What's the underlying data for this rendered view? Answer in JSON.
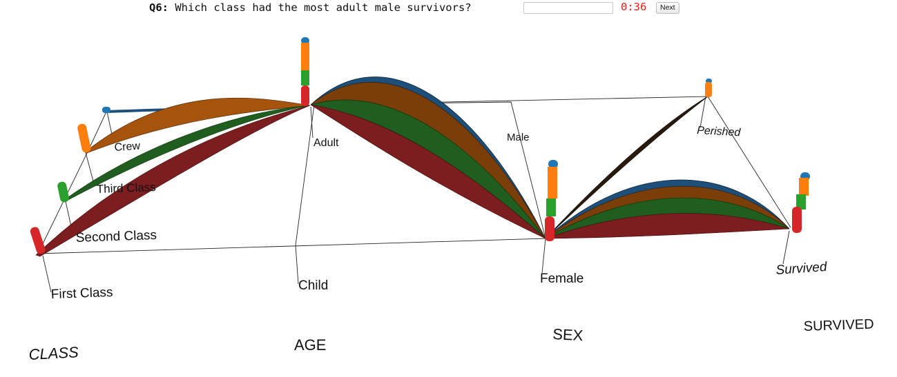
{
  "question": {
    "number": "Q6:",
    "text": "Which class had the most adult male survivors?",
    "answer_value": "",
    "timer": "0:36",
    "next_label": "Next"
  },
  "dimensions": {
    "class": "CLASS",
    "age": "AGE",
    "sex": "SEX",
    "survived": "SURVIVED"
  },
  "categories": {
    "class": [
      "First Class",
      "Second Class",
      "Third Class",
      "Crew"
    ],
    "age": [
      "Adult",
      "Child"
    ],
    "sex": [
      "Male",
      "Female"
    ],
    "survived": [
      "Perished",
      "Survived"
    ]
  },
  "colors": {
    "first_class": "#d62728",
    "second_class": "#2ca02c",
    "third_class": "#ff7f0e",
    "crew": "#1f77b4",
    "ribbon_first": "#7c1d1f",
    "ribbon_second": "#1f5e1f",
    "ribbon_third": "#a6530c",
    "ribbon_crew": "#1c4f7a"
  }
}
